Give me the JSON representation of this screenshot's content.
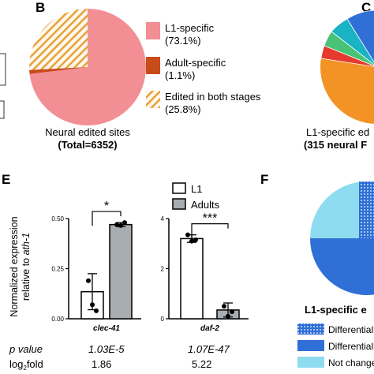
{
  "panel_labels": {
    "b": "B",
    "c": "C",
    "e": "E",
    "f": "F"
  },
  "colors": {
    "l1_pink": "#f28f95",
    "adult_red": "#c84b1a",
    "both_hatch": "#e8a33c",
    "orange": "#f39325",
    "dark_blue": "#2f6fd6",
    "light_blue": "#8fdcf0",
    "adults_gray": "#a8adb2"
  },
  "panel_b": {
    "caption_line1": "Neural edited sites",
    "caption_line2": "(Total=6352)",
    "legend": [
      {
        "label": "L1-specific",
        "value": "(73.1%)",
        "style": "solid",
        "color": "#f28f95"
      },
      {
        "label": "Adult-specific",
        "value": "(1.1%)",
        "style": "solid",
        "color": "#c84b1a"
      },
      {
        "label": "Edited in both stages",
        "value": "(25.8%)",
        "style": "hatch",
        "color": "#e8a33c"
      }
    ]
  },
  "panel_c": {
    "caption_line1": "L1-specific ed",
    "caption_line2": "(315 neural F"
  },
  "panel_e": {
    "legend": [
      "L1",
      "Adults"
    ],
    "ylabel_line1": "Normalized expression",
    "ylabel_line2_prefix": "relative to ",
    "ylabel_line2_gene": "ath-1",
    "pvalue_label": "p value",
    "log2fold_label_prefix": "log",
    "log2fold_label_sub": "2",
    "log2fold_label_suffix": "fold"
  },
  "panel_f": {
    "title": "L1-specific e",
    "legend": [
      "Differentiall",
      "Differentiall",
      "Not change"
    ]
  },
  "chart_data": [
    {
      "type": "pie",
      "panel": "B",
      "title": "Neural edited sites",
      "subtitle": "(Total=6352)",
      "slices": [
        {
          "label": "L1-specific",
          "value": 73.1
        },
        {
          "label": "Adult-specific",
          "value": 1.1
        },
        {
          "label": "Edited in both stages",
          "value": 25.8
        }
      ]
    },
    {
      "type": "pie",
      "panel": "C",
      "title": "L1-specific ed",
      "subtitle": "(315 neural F",
      "slices": []
    },
    {
      "type": "bar",
      "panel": "E",
      "gene": "clec-41",
      "categories": [
        "L1",
        "Adults"
      ],
      "values": [
        0.135,
        0.47
      ],
      "errors": [
        0.09,
        0.01
      ],
      "points": [
        [
          0.19,
          0.07,
          0.04
        ],
        [
          0.47,
          0.465,
          0.48
        ]
      ],
      "ylim": [
        0,
        0.5
      ],
      "yticks": [
        "0.00",
        "0.25",
        "0.50"
      ],
      "significance": "*",
      "p_value": "1.03E-5",
      "log2fold": "1.86"
    },
    {
      "type": "bar",
      "panel": "E",
      "gene": "daf-2",
      "categories": [
        "L1",
        "Adults"
      ],
      "values": [
        3.2,
        0.35
      ],
      "errors": [
        0.15,
        0.28
      ],
      "points": [
        [
          3.35,
          3.1,
          3.15
        ],
        [
          0.5,
          0.1,
          0.28
        ]
      ],
      "ylim": [
        0,
        4
      ],
      "yticks": [
        "0",
        "2",
        "4"
      ],
      "significance": "***",
      "p_value": "1.07E-47",
      "log2fold": "5.22"
    },
    {
      "type": "pie",
      "panel": "F",
      "title": "L1-specific e",
      "slices": []
    }
  ]
}
